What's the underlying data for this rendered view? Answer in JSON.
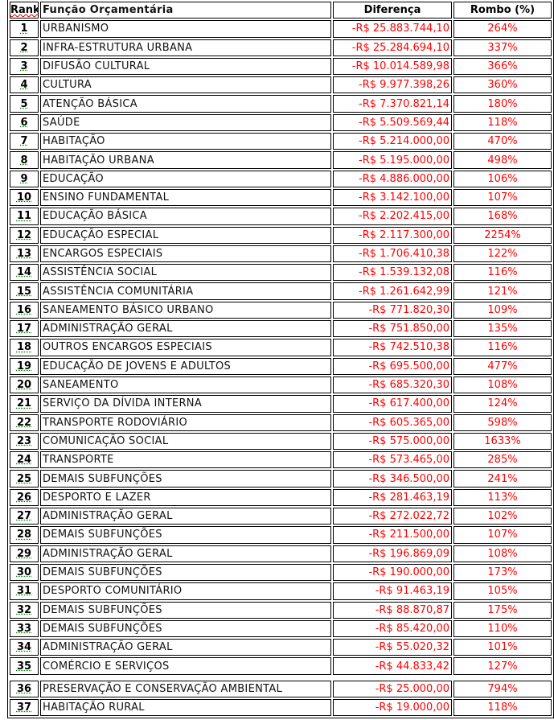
{
  "table": {
    "headers": {
      "rank": "Rank",
      "name": "Função Orçamentária",
      "diff": "Diferença",
      "pct": "Rombo (%)"
    },
    "rows": [
      {
        "rank": "1",
        "name": "URBANISMO",
        "diff": "-R$ 25.883.744,10",
        "pct": "264%"
      },
      {
        "rank": "2",
        "name": "INFRA-ESTRUTURA URBANA",
        "diff": "-R$ 25.284.694,10",
        "pct": "337%"
      },
      {
        "rank": "3",
        "name": "DIFUSÃO CULTURAL",
        "diff": "-R$ 10.014.589,98",
        "pct": "366%"
      },
      {
        "rank": "4",
        "name": "CULTURA",
        "diff": "-R$ 9.977.398,26",
        "pct": "360%"
      },
      {
        "rank": "5",
        "name": "ATENÇÃO BÁSICA",
        "diff": "-R$ 7.370.821,14",
        "pct": "180%"
      },
      {
        "rank": "6",
        "name": "SAÚDE",
        "diff": "-R$ 5.509.569,44",
        "pct": "118%"
      },
      {
        "rank": "7",
        "name": "HABITAÇÃO",
        "diff": "-R$ 5.214.000,00",
        "pct": "470%"
      },
      {
        "rank": "8",
        "name": "HABITAÇÃO URBANA",
        "diff": "-R$ 5.195.000,00",
        "pct": "498%"
      },
      {
        "rank": "9",
        "name": "EDUCAÇÃO",
        "diff": "-R$ 4.886.000,00",
        "pct": "106%"
      },
      {
        "rank": "10",
        "name": "ENSINO FUNDAMENTAL",
        "diff": "-R$ 3.142.100,00",
        "pct": "107%"
      },
      {
        "rank": "11",
        "name": "EDUCAÇÃO BÁSICA",
        "diff": "-R$ 2.202.415,00",
        "pct": "168%"
      },
      {
        "rank": "12",
        "name": "EDUCAÇÃO ESPECIAL",
        "diff": "-R$ 2.117.300,00",
        "pct": "2254%"
      },
      {
        "rank": "13",
        "name": "ENCARGOS ESPECIAIS",
        "diff": "-R$ 1.706.410,38",
        "pct": "122%"
      },
      {
        "rank": "14",
        "name": "ASSISTÊNCIA SOCIAL",
        "diff": "-R$ 1.539.132,08",
        "pct": "116%"
      },
      {
        "rank": "15",
        "name": "ASSISTÊNCIA COMUNITÁRIA",
        "diff": "-R$ 1.261.642,99",
        "pct": "121%"
      },
      {
        "rank": "16",
        "name": "SANEAMENTO BÁSICO URBANO",
        "diff": "-R$ 771.820,30",
        "pct": "109%"
      },
      {
        "rank": "17",
        "name": "ADMINISTRAÇÃO GERAL",
        "diff": "-R$ 751.850,00",
        "pct": "135%"
      },
      {
        "rank": "18",
        "name": "OUTROS ENCARGOS ESPECIAIS",
        "diff": "-R$ 742.510,38",
        "pct": "116%"
      },
      {
        "rank": "19",
        "name": "EDUCAÇÃO DE JOVENS E ADULTOS",
        "diff": "-R$ 695.500,00",
        "pct": "477%"
      },
      {
        "rank": "20",
        "name": "SANEAMENTO",
        "diff": "-R$ 685.320,30",
        "pct": "108%"
      },
      {
        "rank": "21",
        "name": "SERVIÇO DA DÍVIDA INTERNA",
        "diff": "-R$ 617.400,00",
        "pct": "124%"
      },
      {
        "rank": "22",
        "name": "TRANSPORTE RODOVIÁRIO",
        "diff": "-R$ 605.365,00",
        "pct": "598%"
      },
      {
        "rank": "23",
        "name": "COMUNICAÇÃO SOCIAL",
        "diff": "-R$ 575.000,00",
        "pct": "1633%"
      },
      {
        "rank": "24",
        "name": "TRANSPORTE",
        "diff": "-R$ 573.465,00",
        "pct": "285%"
      },
      {
        "rank": "25",
        "name": "DEMAIS SUBFUNÇÕES",
        "diff": "-R$ 346.500,00",
        "pct": "241%"
      },
      {
        "rank": "26",
        "name": "DESPORTO E LAZER",
        "diff": "-R$ 281.463,19",
        "pct": "113%"
      },
      {
        "rank": "27",
        "name": "ADMINISTRAÇÃO GERAL",
        "diff": "-R$ 272.022,72",
        "pct": "102%"
      },
      {
        "rank": "28",
        "name": "DEMAIS SUBFUNÇÕES",
        "diff": "-R$ 211.500,00",
        "pct": "107%"
      },
      {
        "rank": "29",
        "name": "ADMINISTRAÇÃO GERAL",
        "diff": "-R$ 196.869,09",
        "pct": "108%"
      },
      {
        "rank": "30",
        "name": "DEMAIS SUBFUNÇÕES",
        "diff": "-R$ 190.000,00",
        "pct": "173%"
      },
      {
        "rank": "31",
        "name": "DESPORTO COMUNITÁRIO",
        "diff": "-R$ 91.463,19",
        "pct": "105%"
      },
      {
        "rank": "32",
        "name": "DEMAIS SUBFUNÇÕES",
        "diff": "-R$ 88.870,87",
        "pct": "175%"
      },
      {
        "rank": "33",
        "name": "DEMAIS SUBFUNÇÕES",
        "diff": "-R$ 85.420,00",
        "pct": "110%"
      },
      {
        "rank": "34",
        "name": "ADMINISTRAÇÃO GERAL",
        "diff": "-R$ 55.020,32",
        "pct": "101%"
      },
      {
        "rank": "35",
        "name": "COMÉRCIO E SERVIÇOS",
        "diff": "-R$ 44.833,42",
        "pct": "127%"
      },
      {
        "rank": "36",
        "name": "PRESERVAÇÃO E CONSERVAÇÃO AMBIENTAL",
        "diff": "-R$ 25.000,00",
        "pct": "794%"
      },
      {
        "rank": "37",
        "name": "HABITAÇÃO RURAL",
        "diff": "-R$ 19.000,00",
        "pct": "118%"
      }
    ]
  },
  "colors": {
    "value_text": "#ff0000",
    "border": "#000000"
  }
}
